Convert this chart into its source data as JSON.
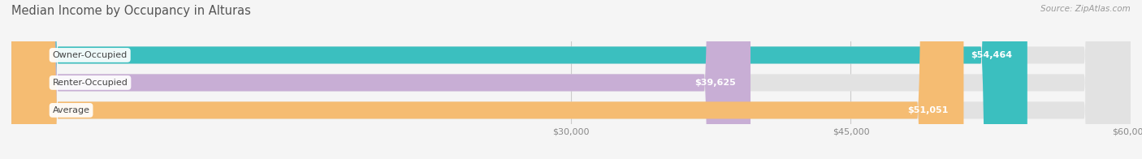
{
  "title": "Median Income by Occupancy in Alturas",
  "source": "Source: ZipAtlas.com",
  "categories": [
    "Owner-Occupied",
    "Renter-Occupied",
    "Average"
  ],
  "values": [
    54464,
    39625,
    51051
  ],
  "bar_colors": [
    "#3bbfbf",
    "#c8aed5",
    "#f5bc72"
  ],
  "bar_labels": [
    "$54,464",
    "$39,625",
    "$51,051"
  ],
  "xlim_min": 0,
  "xlim_max": 60000,
  "xticks": [
    30000,
    45000,
    60000
  ],
  "xtick_labels": [
    "$30,000",
    "$45,000",
    "$60,000"
  ],
  "background_color": "#f5f5f5",
  "bar_bg_color": "#e2e2e2",
  "title_fontsize": 10.5,
  "source_fontsize": 7.5,
  "label_fontsize": 8,
  "value_fontsize": 8,
  "tick_fontsize": 8,
  "bar_height": 0.62,
  "title_color": "#555555",
  "source_color": "#999999",
  "grid_color": "#cccccc",
  "label_bg_color": "#ffffff",
  "value_label_color": "#ffffff",
  "outside_label_color": "#666666"
}
